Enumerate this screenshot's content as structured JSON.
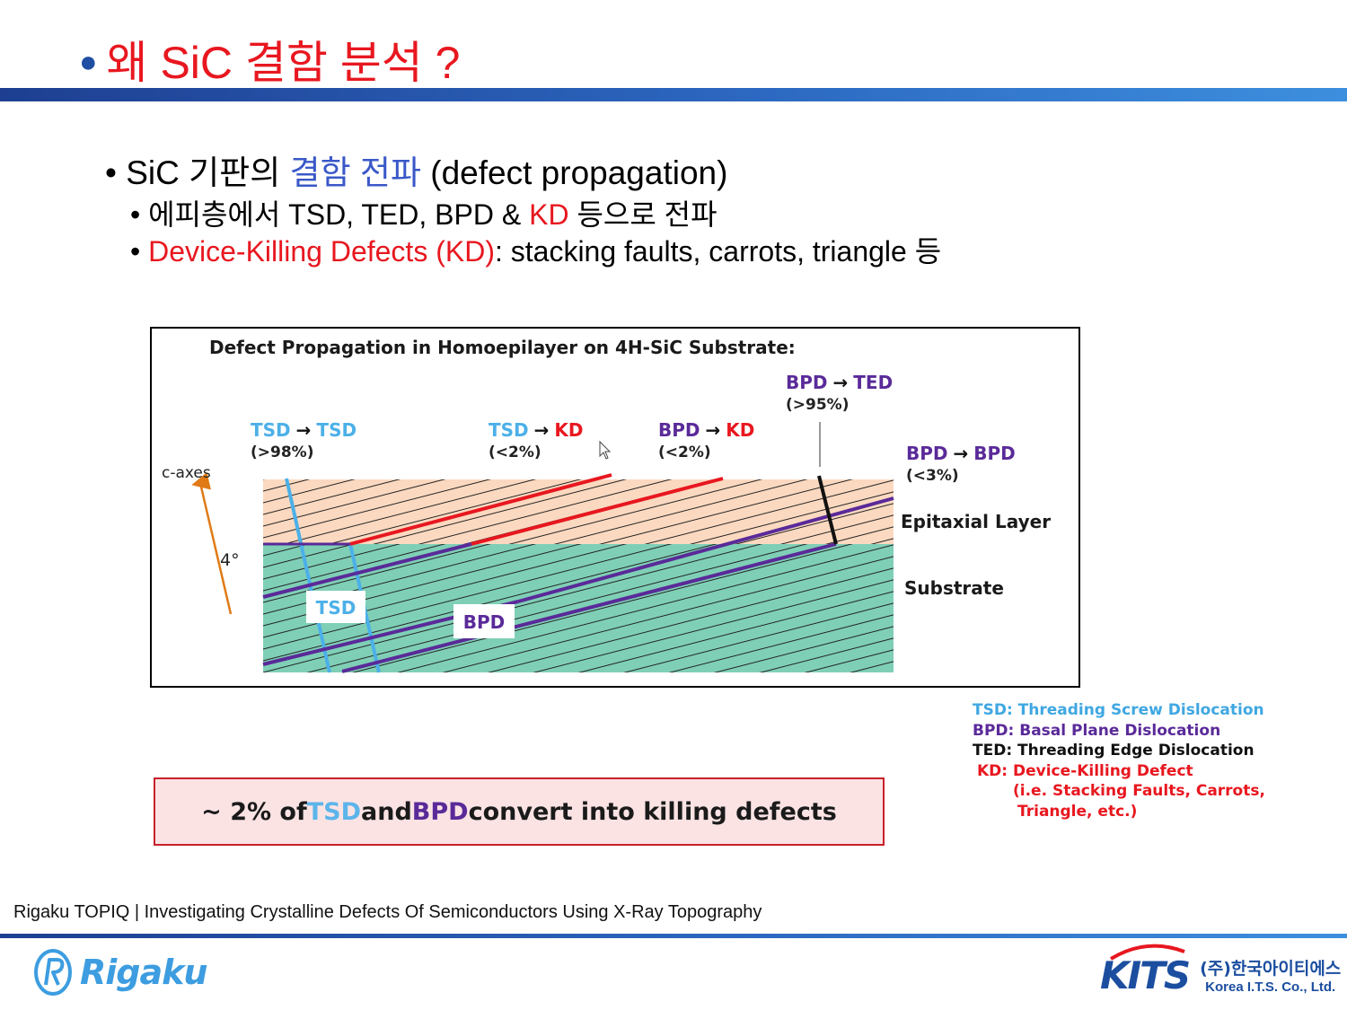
{
  "slide": {
    "title": "왜 SiC 결함 분석 ?",
    "bullets": {
      "b1_pre": "SiC 기판의 ",
      "b1_highlight": "결함 전파",
      "b1_post": " (defect propagation)",
      "b2_pre": "에피층에서 TSD, TED, BPD & ",
      "b2_highlight": "KD",
      "b2_post": " 등으로 전파",
      "b3_highlight": "Device-Killing Defects (KD)",
      "b3_post": ": stacking faults, carrots, triangle 등"
    }
  },
  "diagram": {
    "title": "Defect Propagation in Homoepilayer on 4H-SiC Substrate:",
    "c_axes": "c-axes",
    "angle": "4°",
    "epi_label": "Epitaxial Layer",
    "substrate_label": "Substrate",
    "tsd_tag": "TSD",
    "bpd_tag": "BPD",
    "arrow": "→",
    "transitions": [
      {
        "from": "TSD",
        "to": "TSD",
        "pct": "(>98%)"
      },
      {
        "from": "TSD",
        "to": "KD",
        "pct": "(<2%)"
      },
      {
        "from": "BPD",
        "to": "KD",
        "pct": "(<2%)"
      },
      {
        "from": "BPD",
        "to": "TED",
        "pct": "(>95%)"
      },
      {
        "from": "BPD",
        "to": "BPD",
        "pct": "(<3%)"
      }
    ],
    "colors": {
      "tsd": "#4cb0e8",
      "bpd": "#5a2a99",
      "kd": "#e8171f",
      "ted": "#111111",
      "epi": "#fbd9c0",
      "substrate": "#7fcfb6"
    }
  },
  "legend": {
    "tsd": "TSD: Threading Screw Dislocation",
    "bpd": "BPD: Basal Plane Dislocation",
    "ted": "TED: Threading Edge Dislocation",
    "kd": "KD: Device-Killing Defect",
    "kd_note1": "(i.e. Stacking Faults, Carrots,",
    "kd_note2": "Triangle, etc.)"
  },
  "callout": {
    "pre": "~ 2% of ",
    "tsd": "TSD",
    "mid": " and ",
    "bpd": "BPD",
    "post": " convert into killing defects"
  },
  "footer": {
    "text": "Rigaku TOPIQ | Investigating Crystalline Defects Of Semiconductors Using X-Ray Topography",
    "logo_left": "Rigaku",
    "logo_right": "KITS",
    "logo_right_ko": "(주)한국아이티에스",
    "logo_right_en": "Korea I.T.S. Co., Ltd."
  }
}
